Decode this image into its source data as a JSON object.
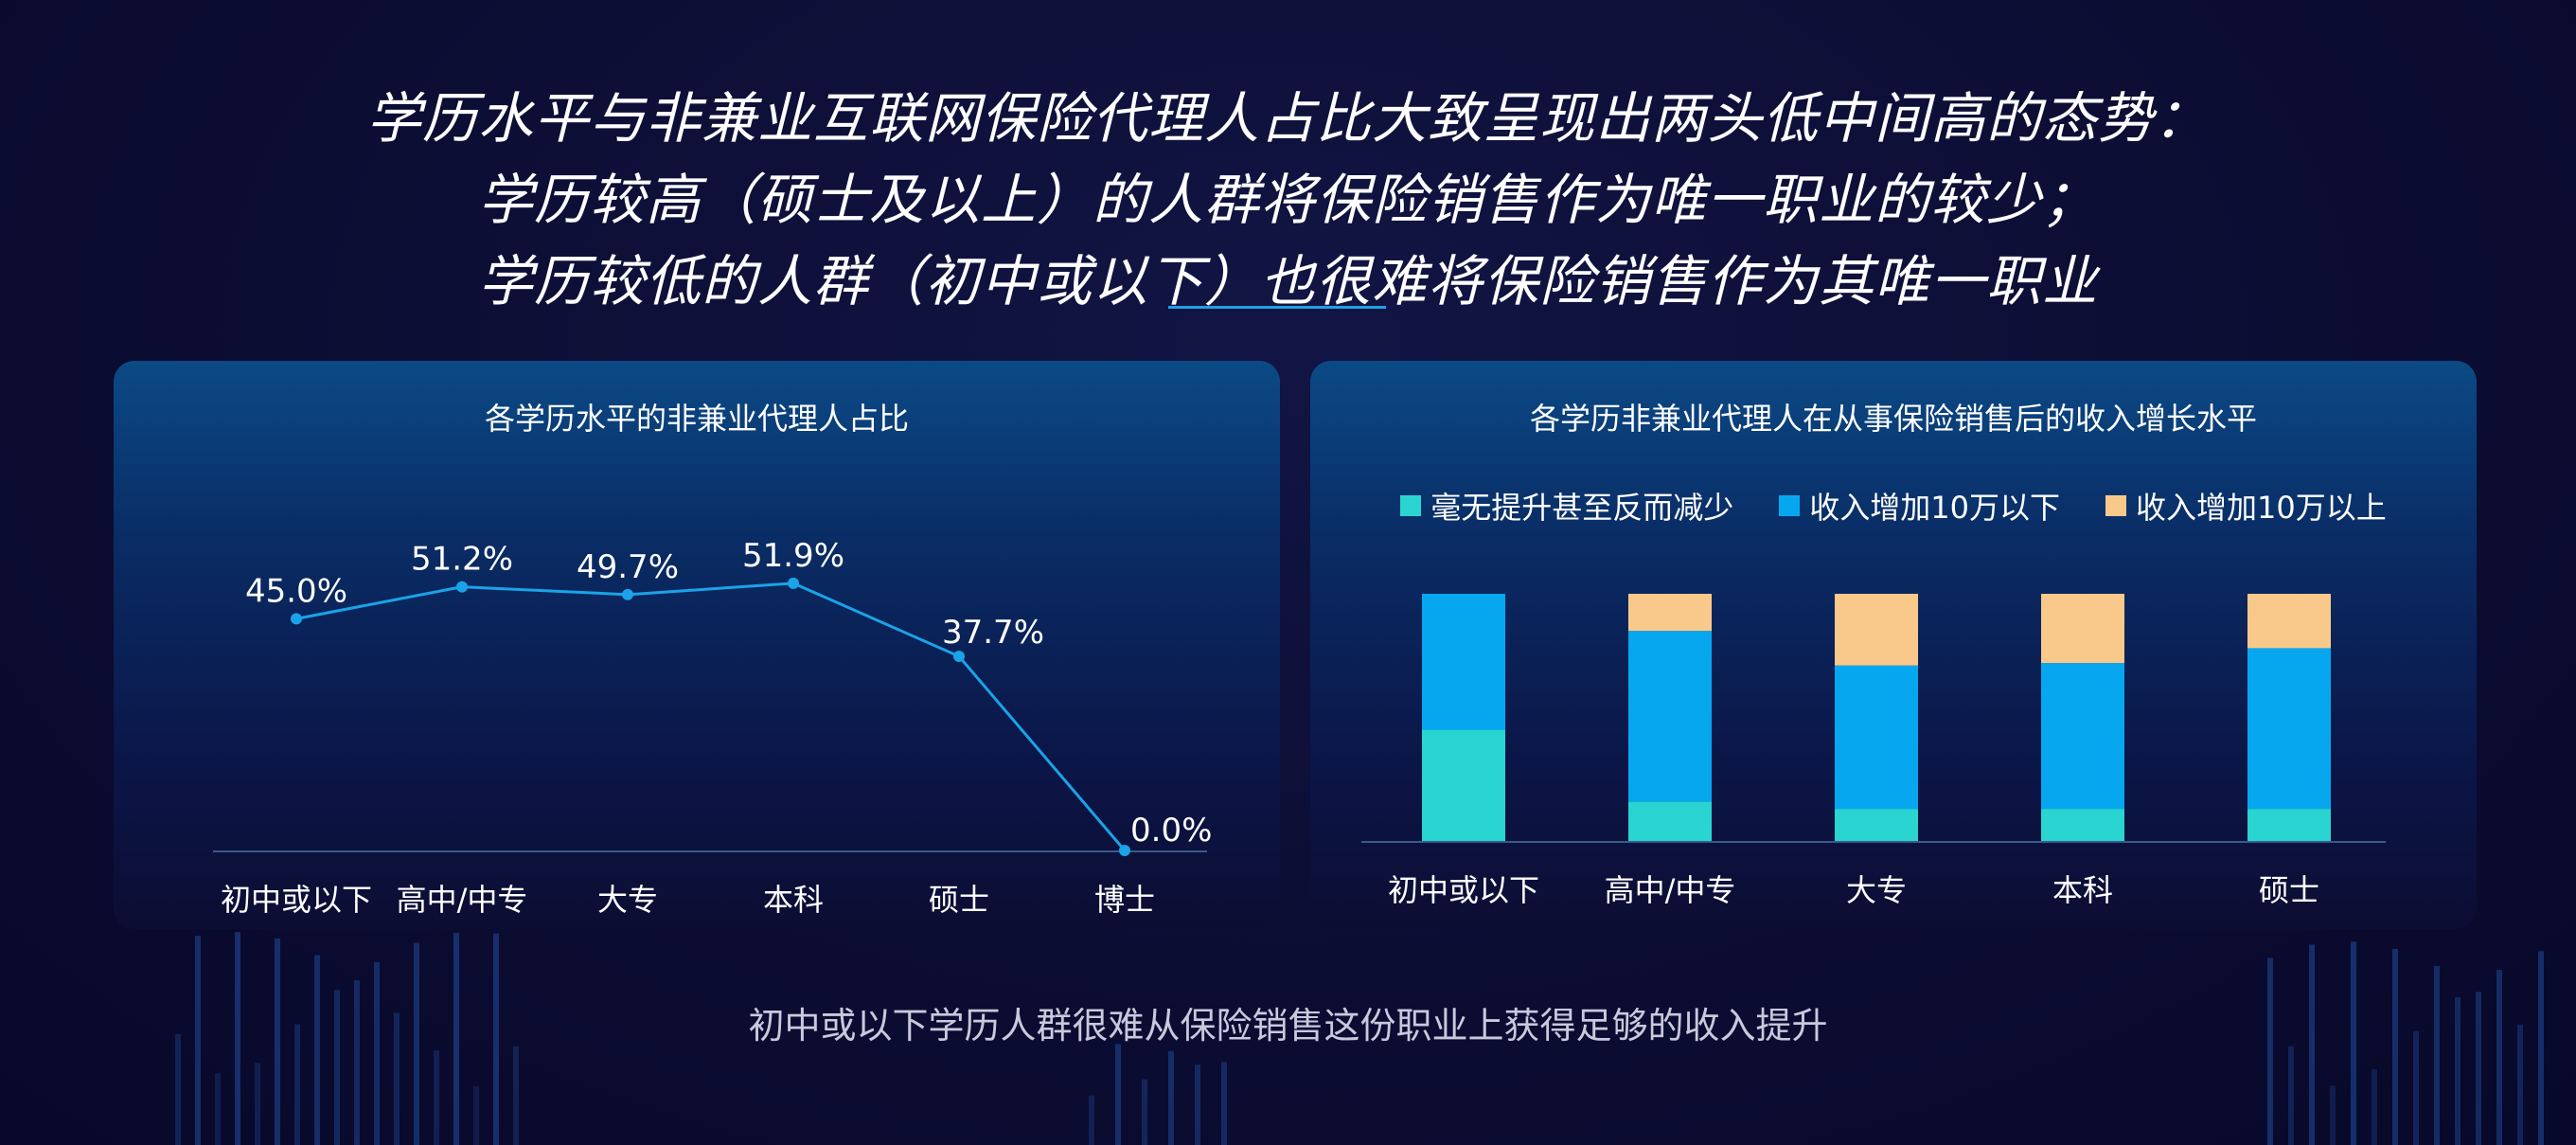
{
  "headline": {
    "line1": "学历水平与非兼业互联网保险代理人占比大致呈现出两头低中间高的态势：",
    "line2": "学历较高（硕士及以上）的人群将保险销售作为唯一职业的较少；",
    "line3": "学历较低的人群（初中或以下）也很难将保险销售作为其唯一职业"
  },
  "caption": "初中或以下学历人群很难从保险销售这份职业上获得足够的收入提升",
  "colors": {
    "line": "#1aa3e8",
    "no_increase": "#2ad4d0",
    "under_100k": "#07a7f0",
    "over_100k": "#f8c98a"
  },
  "chart_data": [
    {
      "type": "line",
      "title": "各学历水平的非兼业代理人占比",
      "categories": [
        "初中或以下",
        "高中/中专",
        "大专",
        "本科",
        "硕士",
        "博士"
      ],
      "values": [
        45.0,
        51.2,
        49.7,
        51.9,
        37.7,
        0.0
      ],
      "value_labels": [
        "45.0%",
        "51.2%",
        "49.7%",
        "51.9%",
        "37.7%",
        "0.0%"
      ],
      "unit": "%",
      "ylim": [
        0,
        55
      ],
      "grid": false,
      "legend": "none"
    },
    {
      "type": "bar",
      "stacked": true,
      "title": "各学历非兼业代理人在从事保险销售后的收入增长水平",
      "categories": [
        "初中或以下",
        "高中/中专",
        "大专",
        "本科",
        "硕士"
      ],
      "series": [
        {
          "name": "毫无提升甚至反而减少",
          "values": [
            45,
            16,
            13,
            13,
            13
          ]
        },
        {
          "name": "收入增加10万以下",
          "values": [
            55,
            69,
            58,
            59,
            65
          ]
        },
        {
          "name": "收入增加10万以上",
          "values": [
            0,
            15,
            29,
            28,
            22
          ]
        }
      ],
      "ylim": [
        0,
        100
      ],
      "grid": false,
      "legend": "top"
    }
  ]
}
